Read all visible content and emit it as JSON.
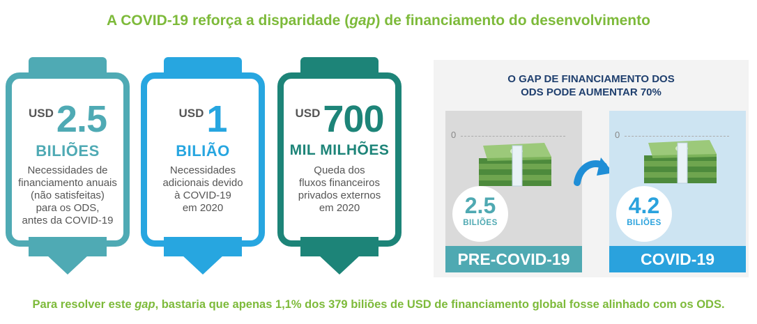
{
  "title": {
    "before": "A COVID-19 reforça a disparidade (",
    "gap": "gap",
    "after": ") de financiamento do desenvolvimento"
  },
  "cards": [
    {
      "currency": "USD",
      "number": "2.5",
      "unit": "BILIÕES",
      "desc": [
        "Necessidades de",
        "financiamento anuais",
        "(não satisfeitas)",
        "para os ODS,",
        "antes da COVID-19"
      ],
      "color": "#4faab4"
    },
    {
      "currency": "USD",
      "number": "1",
      "unit": "BILIÃO",
      "desc": [
        "Necessidades",
        "adicionais devido",
        "à COVID-19",
        "em 2020"
      ],
      "color": "#27a6e0"
    },
    {
      "currency": "USD",
      "number": "700",
      "unit": "MIL MILHÕES",
      "desc": [
        "Queda dos",
        "fluxos financeiros",
        "privados externos",
        "em 2020"
      ],
      "color": "#1d8478"
    }
  ],
  "gap_panel": {
    "title_line1": "O GAP DE FINANCIAMENTO DOS",
    "title_line2": "ODS PODE AUMENTAR 70%",
    "pre": {
      "zero": "0",
      "value": "2.5",
      "unit": "BILIÕES",
      "label": "PRE-COVID-19",
      "color": "#4fa9b2"
    },
    "post": {
      "zero": "0",
      "value": "4.2",
      "unit": "BILIÕES",
      "label": "COVID-19",
      "color": "#2aa2dd"
    },
    "arrow_icon": "curved-arrow-icon",
    "money_icon": "cash-stack-icon"
  },
  "footer": {
    "before": "Para resolver este ",
    "gap": "gap",
    "after": ", bastaria que apenas 1,1% dos 379 biliões de USD de financiamento global fosse alinhado com os ODS."
  },
  "colors": {
    "accent_green": "#7dba3a",
    "navy": "#1f3f6e"
  }
}
